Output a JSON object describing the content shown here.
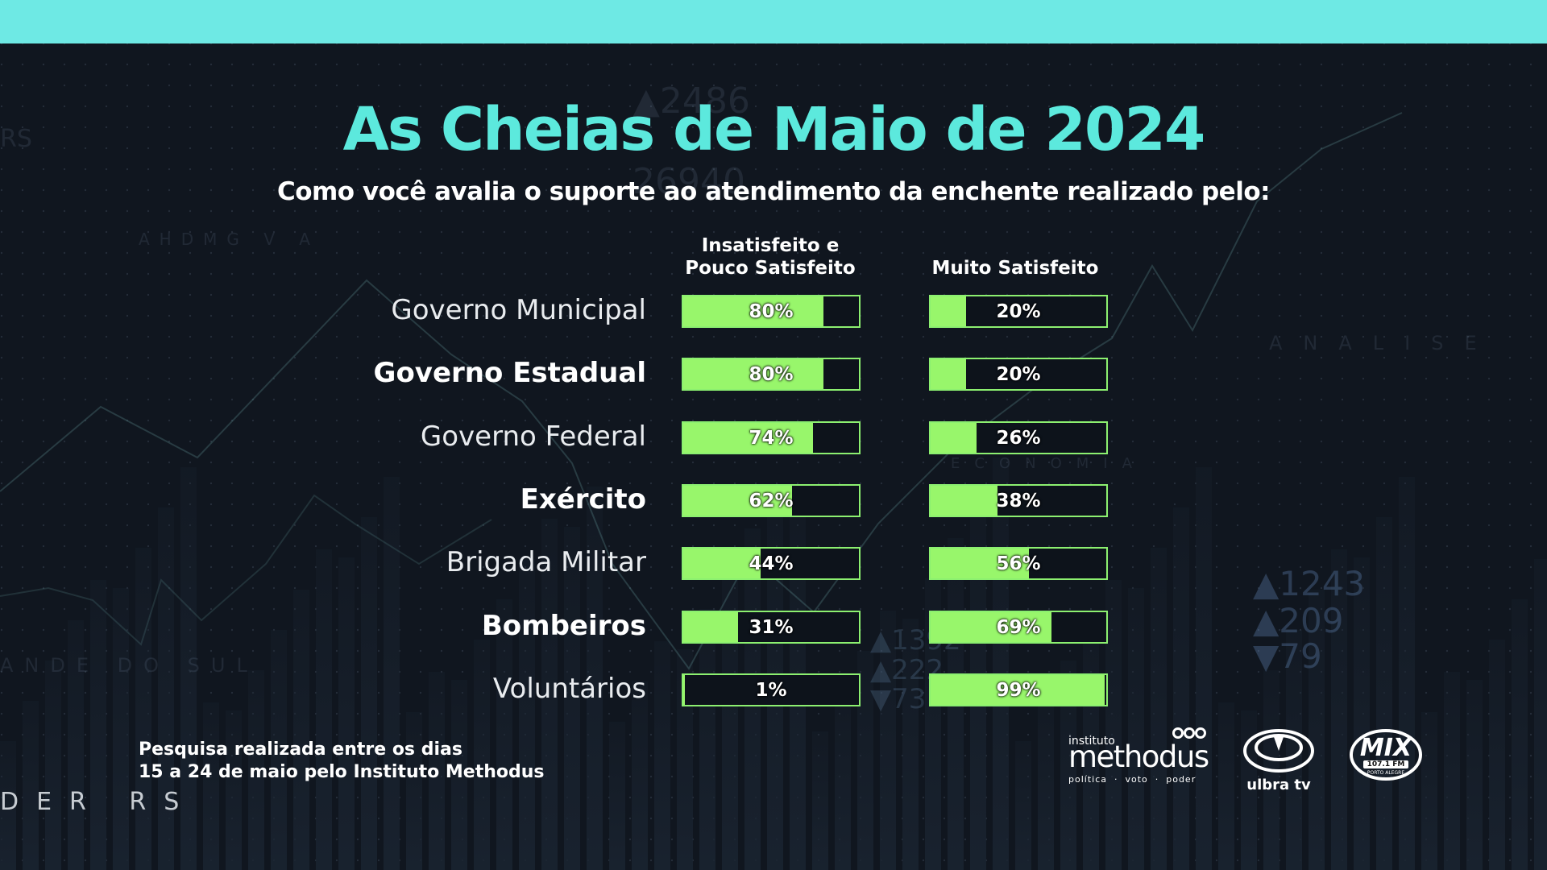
{
  "title": "As Cheias de Maio de 2024",
  "subtitle": "Como você avalia o suporte ao atendimento da enchente realizado pelo:",
  "footnote": {
    "line1": "Pesquisa realizada entre os dias",
    "line2": "15 a 24 de maio pelo Instituto Methodus"
  },
  "logos": {
    "methodus": {
      "small": "instituto",
      "main": "methodus",
      "tagline": "política  ·  voto  ·  poder"
    },
    "ulbra": "ulbra tv",
    "mix": {
      "main": "MIX",
      "freq": "107.1 FM",
      "city": "PORTO ALEGRE"
    }
  },
  "colors": {
    "title": "#5ce9dd",
    "topbar": "#6ee9e4",
    "bar_fill": "#98f66b",
    "bar_border": "#8cf070",
    "background": "#10161f"
  },
  "chart_data": {
    "type": "bar",
    "orientation": "horizontal",
    "categories": [
      "Governo Municipal",
      "Governo Estadual",
      "Governo Federal",
      "Exército",
      "Brigada Militar",
      "Bombeiros",
      "Voluntários"
    ],
    "bold_categories": [
      false,
      true,
      false,
      true,
      false,
      true,
      false
    ],
    "series": [
      {
        "name": "Insatisfeito e Pouco Satisfeito",
        "header_line1": "Insatisfeito e",
        "header_line2": "Pouco Satisfeito",
        "values": [
          80,
          80,
          74,
          62,
          44,
          31,
          1
        ],
        "labels": [
          "80%",
          "80%",
          "74%",
          "62%",
          "44%",
          "31%",
          "1%"
        ]
      },
      {
        "name": "Muito Satisfeito",
        "header_line1": "Muito Satisfeito",
        "header_line2": "",
        "values": [
          20,
          20,
          26,
          38,
          56,
          69,
          99
        ],
        "labels": [
          "20%",
          "20%",
          "26%",
          "38%",
          "56%",
          "69%",
          "99%"
        ]
      }
    ],
    "unit": "%",
    "xlim": [
      0,
      100
    ],
    "legend": "none"
  }
}
